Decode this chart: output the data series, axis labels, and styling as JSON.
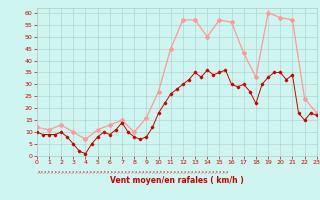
{
  "xlabel": "Vent moyen/en rafales ( km/h )",
  "bg_color": "#cef5f0",
  "grid_color": "#aacccc",
  "x_ticks": [
    0,
    1,
    2,
    3,
    4,
    5,
    6,
    7,
    8,
    9,
    10,
    11,
    12,
    13,
    14,
    15,
    16,
    17,
    18,
    19,
    20,
    21,
    22,
    23
  ],
  "y_ticks": [
    0,
    5,
    10,
    15,
    20,
    25,
    30,
    35,
    40,
    45,
    50,
    55,
    60
  ],
  "xlim": [
    0,
    23
  ],
  "ylim": [
    0,
    62
  ],
  "wind_mean_x": [
    0.0,
    0.5,
    1.0,
    1.5,
    2.0,
    2.5,
    3.0,
    3.5,
    4.0,
    4.5,
    5.0,
    5.5,
    6.0,
    6.5,
    7.0,
    7.5,
    8.0,
    8.5,
    9.0,
    9.5,
    10.0,
    10.5,
    11.0,
    11.5,
    12.0,
    12.5,
    13.0,
    13.5,
    14.0,
    14.5,
    15.0,
    15.5,
    16.0,
    16.5,
    17.0,
    17.5,
    18.0,
    18.5,
    19.0,
    19.5,
    20.0,
    20.5,
    21.0,
    21.5,
    22.0,
    22.5,
    23.0
  ],
  "wind_mean_y": [
    10,
    9,
    9,
    9,
    10,
    8,
    5,
    2,
    1,
    5,
    8,
    10,
    9,
    11,
    14,
    10,
    8,
    7,
    8,
    12,
    18,
    22,
    26,
    28,
    30,
    32,
    35,
    33,
    36,
    34,
    35,
    36,
    30,
    29,
    30,
    27,
    22,
    30,
    33,
    35,
    35,
    32,
    34,
    18,
    15,
    18,
    17
  ],
  "wind_gust_x": [
    0,
    1,
    2,
    3,
    4,
    5,
    6,
    7,
    8,
    9,
    10,
    11,
    12,
    13,
    14,
    15,
    16,
    17,
    18,
    19,
    20,
    21,
    22,
    23
  ],
  "wind_gust_y": [
    12,
    11,
    13,
    10,
    7,
    11,
    13,
    15,
    10,
    16,
    27,
    45,
    57,
    57,
    50,
    57,
    56,
    43,
    33,
    60,
    58,
    57,
    24,
    18
  ],
  "mean_color": "#cc0000",
  "gust_color": "#ff9999",
  "xlabel_color": "#cc0000",
  "tick_color": "#cc0000",
  "arrow_row": "↗↗↗↗↗↗↗↗↗↗↗↗↗↗↗↗↗↗↗↗↗↗↗↗↗↗↗↗↗↗↗↗↗↗↗↗↗↗↗↗↗↗↗↗↗↗↗↗↗↗↗↗↗↗↗"
}
